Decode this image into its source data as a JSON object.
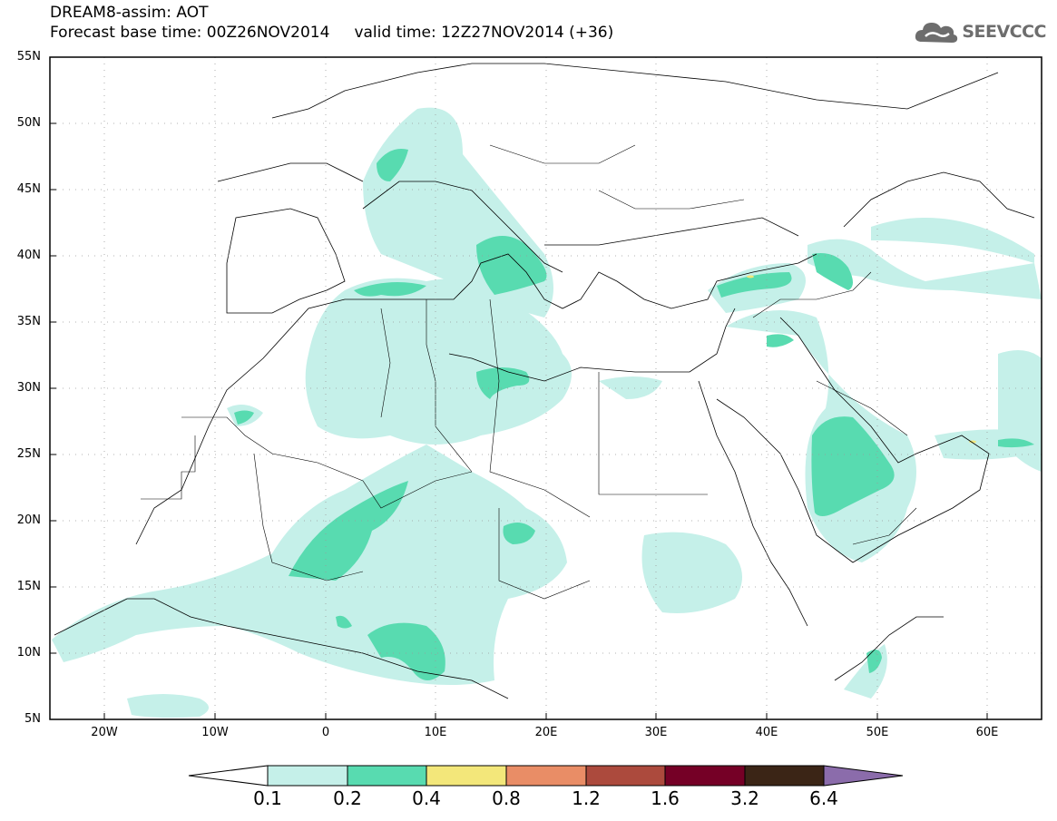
{
  "header": {
    "title_line1": "DREAM8-assim: AOT",
    "base_time_label": "Forecast base time: 00Z26NOV2014",
    "valid_time_label": "valid time: 12Z27NOV2014 (+36)"
  },
  "logo": {
    "text": "SEEVCCC",
    "icon": "cloud-icon",
    "color": "#6d6d6d"
  },
  "map": {
    "lat_ticks": [
      "55N",
      "50N",
      "45N",
      "40N",
      "35N",
      "30N",
      "25N",
      "20N",
      "15N",
      "10N",
      "5N"
    ],
    "lon_ticks": [
      "20W",
      "10W",
      "0",
      "10E",
      "20E",
      "30E",
      "40E",
      "50E",
      "60E"
    ],
    "lon_range": [
      -25,
      65
    ],
    "lat_range": [
      5,
      55
    ]
  },
  "colorbar": {
    "levels": [
      "0.1",
      "0.2",
      "0.4",
      "0.8",
      "1.2",
      "1.6",
      "3.2",
      "6.4"
    ],
    "colors": [
      "#ffffff",
      "#c5f0e9",
      "#58dbb0",
      "#f3e77a",
      "#e98d66",
      "#ac4a3d",
      "#750026",
      "#3b2516",
      "#8b6cab"
    ]
  }
}
